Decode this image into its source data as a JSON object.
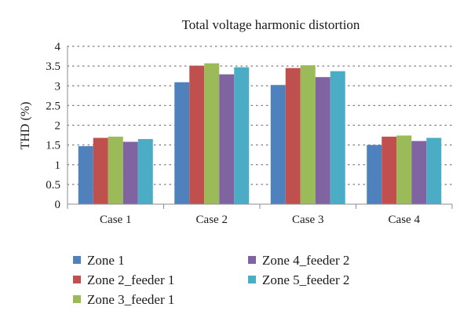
{
  "chart_data": {
    "type": "bar",
    "title": "Total voltage harmonic distortion",
    "xlabel": "",
    "ylabel": "THD (%)",
    "ylim": [
      0,
      4
    ],
    "yticks": [
      "0",
      "0.5",
      "1",
      "1.5",
      "2",
      "2.5",
      "3",
      "3.5",
      "4"
    ],
    "grid": "horizontal dotted",
    "legend_position": "bottom",
    "categories": [
      "Case 1",
      "Case 2",
      "Case 3",
      "Case 4"
    ],
    "series": [
      {
        "name": "Zone 1",
        "color": "#4f81bd",
        "values": [
          1.47,
          3.09,
          3.02,
          1.5
        ]
      },
      {
        "name": "Zone 2_feeder 1",
        "color": "#c0504d",
        "values": [
          1.68,
          3.51,
          3.45,
          1.71
        ]
      },
      {
        "name": "Zone 3_feeder 1",
        "color": "#9bbb59",
        "values": [
          1.71,
          3.57,
          3.52,
          1.74
        ]
      },
      {
        "name": "Zone 4_feeder 2",
        "color": "#8064a2",
        "values": [
          1.58,
          3.29,
          3.22,
          1.6
        ]
      },
      {
        "name": "Zone 5_feeder 2",
        "color": "#4bacc6",
        "values": [
          1.65,
          3.47,
          3.37,
          1.68
        ]
      }
    ]
  }
}
